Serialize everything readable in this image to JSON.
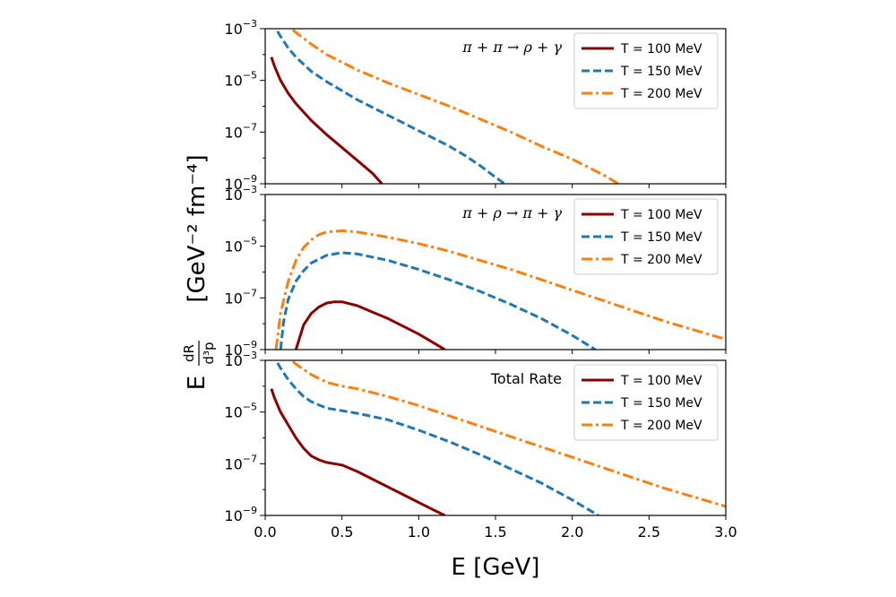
{
  "chart_data": {
    "type": "line",
    "xlabel": "E  [GeV]",
    "ylabel_prefix": "E",
    "ylabel_frac_num": "dR",
    "ylabel_frac_den": "d³p",
    "ylabel_units": "[GeV⁻² fm⁻⁴]",
    "xlim": [
      0.0,
      3.0
    ],
    "x_ticks": [
      "0.0",
      "0.5",
      "1.0",
      "1.5",
      "2.0",
      "2.5",
      "3.0"
    ],
    "ylim_log10": [
      -9,
      -3
    ],
    "y_tick_base": "10",
    "y_tick_exponents": [
      "−9",
      "−7",
      "−5",
      "−3"
    ],
    "colors": {
      "T100": "#8b0000",
      "T150": "#1f77b4",
      "T200": "#ff7f0e"
    },
    "panels": [
      {
        "title": "π + π → ρ + γ",
        "legend_position": "top-right",
        "series": [
          {
            "name": "T = 100 MeV",
            "style": "solid",
            "x": [
              0.04,
              0.06,
              0.1,
              0.15,
              0.2,
              0.3,
              0.4,
              0.5,
              0.6,
              0.7,
              0.76
            ],
            "log10_y": [
              -4.1,
              -4.45,
              -5.0,
              -5.5,
              -5.9,
              -6.55,
              -7.1,
              -7.6,
              -8.1,
              -8.6,
              -9.0
            ]
          },
          {
            "name": "T = 150 MeV",
            "style": "dashed",
            "x": [
              0.08,
              0.1,
              0.15,
              0.2,
              0.3,
              0.4,
              0.5,
              0.6,
              0.7,
              0.8,
              0.9,
              1.0,
              1.1,
              1.2,
              1.3,
              1.4,
              1.5,
              1.56
            ],
            "log10_y": [
              -3.1,
              -3.3,
              -3.75,
              -4.1,
              -4.65,
              -5.05,
              -5.4,
              -5.75,
              -6.05,
              -6.35,
              -6.65,
              -6.95,
              -7.25,
              -7.55,
              -7.9,
              -8.3,
              -8.75,
              -9.0
            ]
          },
          {
            "name": "T = 200 MeV",
            "style": "dashdot",
            "x": [
              0.18,
              0.2,
              0.3,
              0.4,
              0.5,
              0.6,
              0.7,
              0.8,
              1.0,
              1.2,
              1.4,
              1.6,
              1.8,
              2.0,
              2.2,
              2.3
            ],
            "log10_y": [
              -3.05,
              -3.15,
              -3.6,
              -4.0,
              -4.3,
              -4.6,
              -4.85,
              -5.1,
              -5.55,
              -6.0,
              -6.5,
              -7.0,
              -7.55,
              -8.05,
              -8.65,
              -9.0
            ]
          }
        ]
      },
      {
        "title": "π + ρ → π + γ",
        "legend_position": "top-right",
        "series": [
          {
            "name": "T = 100 MeV",
            "style": "solid",
            "x": [
              0.2,
              0.25,
              0.3,
              0.35,
              0.4,
              0.45,
              0.5,
              0.6,
              0.7,
              0.8,
              0.9,
              1.0,
              1.1,
              1.17
            ],
            "log10_y": [
              -9.0,
              -8.05,
              -7.6,
              -7.35,
              -7.2,
              -7.15,
              -7.15,
              -7.3,
              -7.55,
              -7.8,
              -8.1,
              -8.4,
              -8.75,
              -9.0
            ]
          },
          {
            "name": "T = 150 MeV",
            "style": "dashed",
            "x": [
              0.1,
              0.12,
              0.15,
              0.2,
              0.25,
              0.3,
              0.4,
              0.5,
              0.6,
              0.8,
              1.0,
              1.2,
              1.4,
              1.6,
              1.8,
              2.0,
              2.15
            ],
            "log10_y": [
              -9.0,
              -7.9,
              -7.05,
              -6.35,
              -5.95,
              -5.65,
              -5.35,
              -5.25,
              -5.3,
              -5.55,
              -5.9,
              -6.3,
              -6.75,
              -7.25,
              -7.8,
              -8.45,
              -9.0
            ]
          },
          {
            "name": "T = 200 MeV",
            "style": "dashdot",
            "x": [
              0.07,
              0.1,
              0.15,
              0.2,
              0.25,
              0.3,
              0.35,
              0.4,
              0.5,
              0.6,
              0.8,
              1.0,
              1.2,
              1.4,
              1.6,
              1.8,
              2.0,
              2.2,
              2.4,
              2.6,
              2.8,
              3.0
            ],
            "log10_y": [
              -9.0,
              -7.6,
              -6.35,
              -5.55,
              -5.05,
              -4.75,
              -4.55,
              -4.45,
              -4.4,
              -4.45,
              -4.65,
              -4.9,
              -5.2,
              -5.55,
              -5.9,
              -6.3,
              -6.7,
              -7.1,
              -7.5,
              -7.9,
              -8.25,
              -8.6
            ]
          }
        ]
      },
      {
        "title": "Total Rate",
        "legend_position": "top-right",
        "series": [
          {
            "name": "T = 100 MeV",
            "style": "solid",
            "x": [
              0.04,
              0.06,
              0.1,
              0.15,
              0.2,
              0.25,
              0.3,
              0.35,
              0.4,
              0.5,
              0.6,
              0.7,
              0.8,
              0.9,
              1.0,
              1.1,
              1.17
            ],
            "log10_y": [
              -4.1,
              -4.45,
              -5.0,
              -5.5,
              -6.0,
              -6.4,
              -6.7,
              -6.85,
              -6.95,
              -7.05,
              -7.3,
              -7.6,
              -7.9,
              -8.2,
              -8.5,
              -8.8,
              -9.0
            ]
          },
          {
            "name": "T = 150 MeV",
            "style": "dashed",
            "x": [
              0.08,
              0.1,
              0.15,
              0.2,
              0.25,
              0.3,
              0.4,
              0.5,
              0.6,
              0.8,
              1.0,
              1.2,
              1.4,
              1.6,
              1.8,
              2.0,
              2.17
            ],
            "log10_y": [
              -3.1,
              -3.3,
              -3.75,
              -4.1,
              -4.4,
              -4.6,
              -4.85,
              -4.95,
              -5.05,
              -5.3,
              -5.7,
              -6.15,
              -6.65,
              -7.2,
              -7.75,
              -8.4,
              -9.0
            ]
          },
          {
            "name": "T = 200 MeV",
            "style": "dashdot",
            "x": [
              0.18,
              0.2,
              0.3,
              0.4,
              0.5,
              0.6,
              0.8,
              1.0,
              1.2,
              1.4,
              1.6,
              1.8,
              2.0,
              2.2,
              2.4,
              2.6,
              2.8,
              3.0
            ],
            "log10_y": [
              -3.05,
              -3.15,
              -3.55,
              -3.85,
              -4.0,
              -4.1,
              -4.4,
              -4.75,
              -5.15,
              -5.55,
              -5.95,
              -6.35,
              -6.75,
              -7.15,
              -7.55,
              -7.95,
              -8.3,
              -8.65
            ]
          }
        ]
      }
    ]
  }
}
